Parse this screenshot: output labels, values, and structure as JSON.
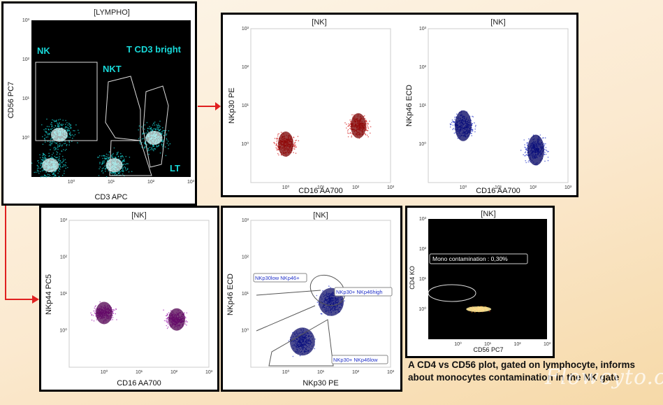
{
  "colors": {
    "lympho_density": "#18c8c8",
    "nkp30": "#d42020",
    "nkp46": "#2030c8",
    "nkp44": "#a020b0",
    "heat": "#ffcc30",
    "arrow": "#e02020"
  },
  "plots": [
    {
      "id": "lympho",
      "title": "[LYMPHO]",
      "xlabel": "CD3 APC",
      "ylabel": "CD56 PC7",
      "ticks_x": [
        "10⁰",
        "10¹",
        "10²",
        "10³"
      ],
      "ticks_y": [
        "10⁰",
        "10¹",
        "10²",
        "10³"
      ],
      "gates": [
        "NK",
        "NKT",
        "T CD3 bright",
        "LT"
      ]
    },
    {
      "id": "nkp30",
      "title": "[NK]",
      "xlabel": "CD16 AA700",
      "ylabel": "NKp30 PE",
      "ticks_x": [
        "10⁰",
        "10¹",
        "10²",
        "10³"
      ],
      "ticks_y": [
        "10⁰",
        "10¹",
        "10²",
        "10³"
      ]
    },
    {
      "id": "nkp46",
      "title": "[NK]",
      "xlabel": "CD16 AA700",
      "ylabel": "NKp46 ECD",
      "ticks_x": [
        "10⁰",
        "10¹",
        "10²",
        "10³"
      ],
      "ticks_y": [
        "10⁰",
        "10¹",
        "10²",
        "10³"
      ]
    },
    {
      "id": "nkp44",
      "title": "[NK]",
      "xlabel": "CD16 AA700",
      "ylabel": "NKp44 PC5",
      "ticks_x": [
        "10⁰",
        "10¹",
        "10²",
        "10³"
      ],
      "ticks_y": [
        "10⁰",
        "10¹",
        "10²",
        "10³"
      ]
    },
    {
      "id": "nkp46_vs_nkp30",
      "title": "[NK]",
      "xlabel": "NKp30 PE",
      "ylabel": "NKp46 ECD",
      "ticks_x": [
        "10⁰",
        "10¹",
        "10²",
        "10³"
      ],
      "ticks_y": [
        "10⁰",
        "10¹",
        "10²",
        "10³"
      ],
      "gates": [
        "NKp30low NKp46+",
        "NKp30+ NKp46high",
        "NKp30+ NKp46low"
      ]
    },
    {
      "id": "cd4",
      "title": "[NK]",
      "xlabel": "CD56 PC7",
      "ylabel": "CD4 KO",
      "ticks_x": [
        "10⁰",
        "10¹",
        "10²",
        "10³"
      ],
      "ticks_y": [
        "10⁰",
        "10¹",
        "10²",
        "10³"
      ],
      "gates": [
        "Mono contamination : 0,30%"
      ]
    }
  ],
  "caption": "A CD4 vs CD56 plot, gated on lymphocyte, informs about monocytes contamination in the NK gate",
  "watermark": "Flowcyto.cn",
  "chart_data": [
    {
      "type": "scatter",
      "title": "[LYMPHO]",
      "xlabel": "CD3 APC",
      "ylabel": "CD56 PC7",
      "xscale": "log",
      "yscale": "log",
      "xlim": [
        0.1,
        1000
      ],
      "ylim": [
        0.1,
        1000
      ],
      "clusters": [
        {
          "label": "NK",
          "x": 0.5,
          "y": 1.2
        },
        {
          "label": "NK",
          "x": 0.3,
          "y": 0.2
        },
        {
          "label": "T CD3 bright",
          "x": 12,
          "y": 0.2
        },
        {
          "label": "NKT",
          "x": 120,
          "y": 1
        }
      ]
    },
    {
      "type": "scatter",
      "title": "[NK]",
      "xlabel": "CD16 AA700",
      "ylabel": "NKp30 PE",
      "xscale": "log",
      "yscale": "log",
      "xlim": [
        0.1,
        1000
      ],
      "ylim": [
        0.1,
        1000
      ],
      "clusters": [
        {
          "x": 120,
          "y": 3
        },
        {
          "x": 1,
          "y": 1
        }
      ]
    },
    {
      "type": "scatter",
      "title": "[NK]",
      "xlabel": "CD16 AA700",
      "ylabel": "NKp46 ECD",
      "xscale": "log",
      "yscale": "log",
      "xlim": [
        0.1,
        1000
      ],
      "ylim": [
        0.1,
        1000
      ],
      "clusters": [
        {
          "x": 120,
          "y": 0.7
        },
        {
          "x": 1,
          "y": 3
        }
      ]
    },
    {
      "type": "scatter",
      "title": "[NK]",
      "xlabel": "CD16 AA700",
      "ylabel": "NKp44 PC5",
      "xscale": "log",
      "yscale": "log",
      "xlim": [
        0.1,
        1000
      ],
      "ylim": [
        0.1,
        1000
      ],
      "clusters": [
        {
          "x": 120,
          "y": 2
        },
        {
          "x": 1,
          "y": 3
        }
      ]
    },
    {
      "type": "scatter",
      "title": "[NK]",
      "xlabel": "NKp30 PE",
      "ylabel": "NKp46 ECD",
      "xscale": "log",
      "yscale": "log",
      "xlim": [
        0.1,
        1000
      ],
      "ylim": [
        0.1,
        1000
      ],
      "clusters": [
        {
          "x": 3,
          "y": 0.5
        },
        {
          "x": 20,
          "y": 6
        }
      ]
    },
    {
      "type": "heatmap",
      "title": "[NK]",
      "xlabel": "CD56 PC7",
      "ylabel": "CD4 KO",
      "xscale": "log",
      "yscale": "log",
      "xlim": [
        0.1,
        1000
      ],
      "ylim": [
        0.1,
        1000
      ],
      "clusters": [
        {
          "x": 5,
          "y": 1
        }
      ],
      "annotation": "Mono contamination : 0,30%"
    }
  ]
}
